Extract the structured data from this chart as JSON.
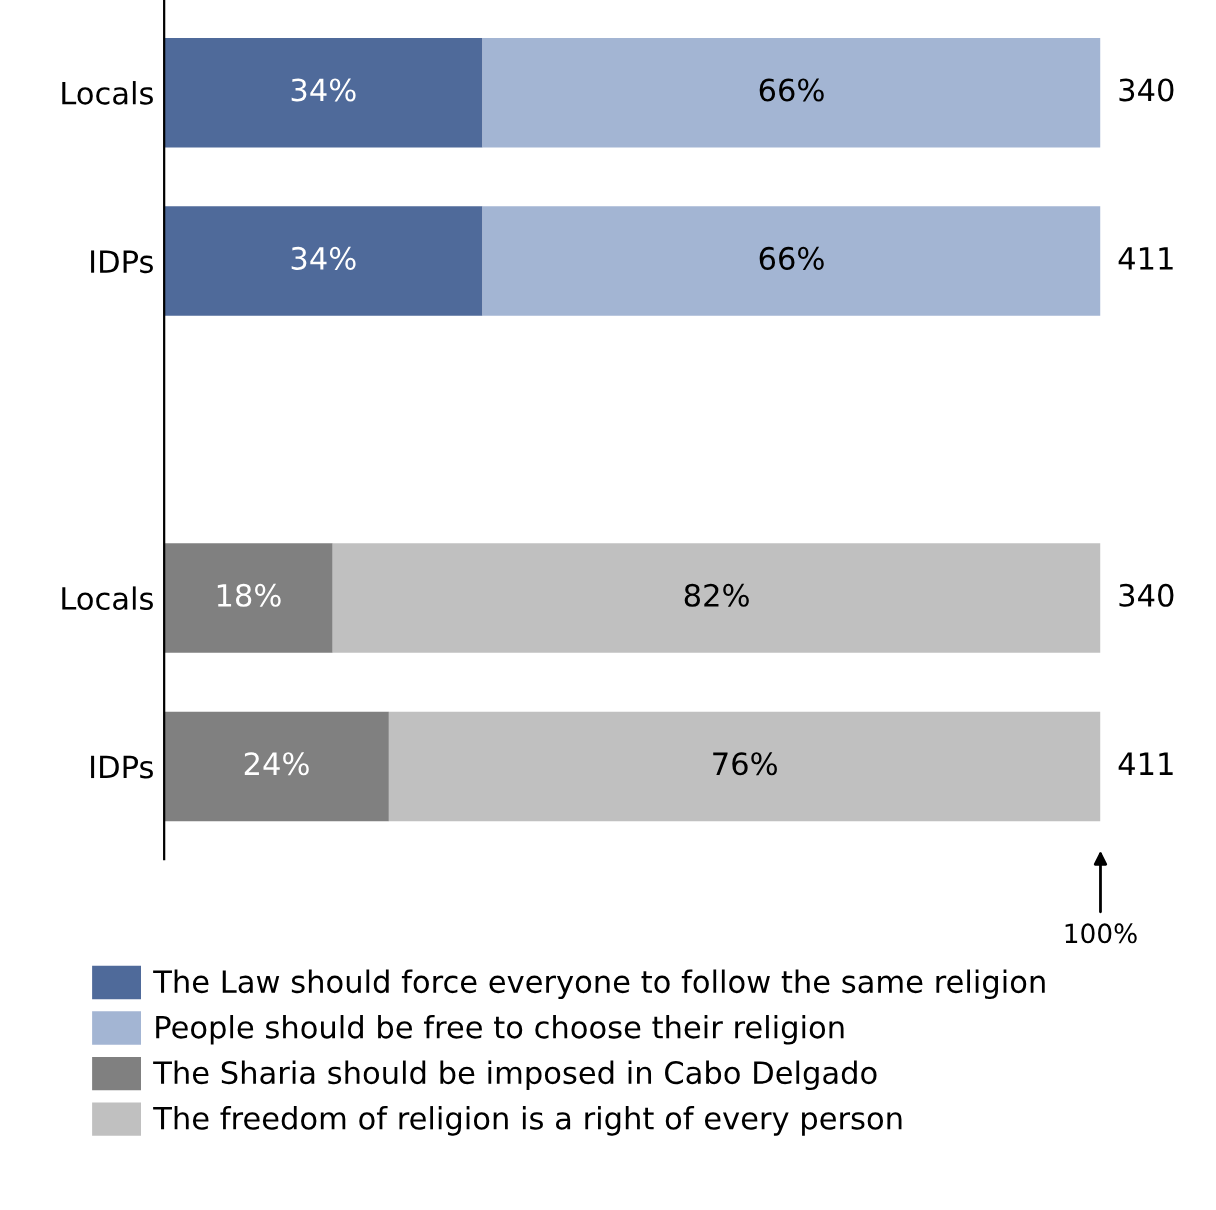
{
  "chart_data": {
    "type": "bar",
    "orientation": "horizontal",
    "stacked": true,
    "categories": [
      "Locals",
      "IDPs",
      null,
      "Locals",
      "IDPs"
    ],
    "xlim": [
      0,
      100
    ],
    "series": [
      {
        "name": "The Law should force everyone to follow the same religion",
        "color": "#4f6a9a",
        "values": [
          34,
          34,
          null,
          null,
          null
        ],
        "value_labels": [
          "34%",
          "34%",
          null,
          null,
          null
        ]
      },
      {
        "name": "People should be free to choose their religion",
        "color": "#a3b5d3",
        "values": [
          66,
          66,
          null,
          null,
          null
        ],
        "value_labels": [
          "66%",
          "66%",
          null,
          null,
          null
        ]
      },
      {
        "name": "The Sharia should be imposed in Cabo Delgado",
        "color": "#808080",
        "values": [
          null,
          null,
          null,
          18,
          24
        ],
        "value_labels": [
          null,
          null,
          null,
          "18%",
          "24%"
        ]
      },
      {
        "name": "The freedom of religion is a right of every person",
        "color": "#c0c0c0",
        "values": [
          null,
          null,
          null,
          82,
          76
        ],
        "value_labels": [
          null,
          null,
          null,
          "82%",
          "76%"
        ]
      }
    ],
    "annotations": [
      "340",
      "411",
      "340",
      "411",
      {
        "text": "100%",
        "x": 100
      }
    ],
    "legend": "bottom",
    "grid": false,
    "tick_labels": "y"
  }
}
